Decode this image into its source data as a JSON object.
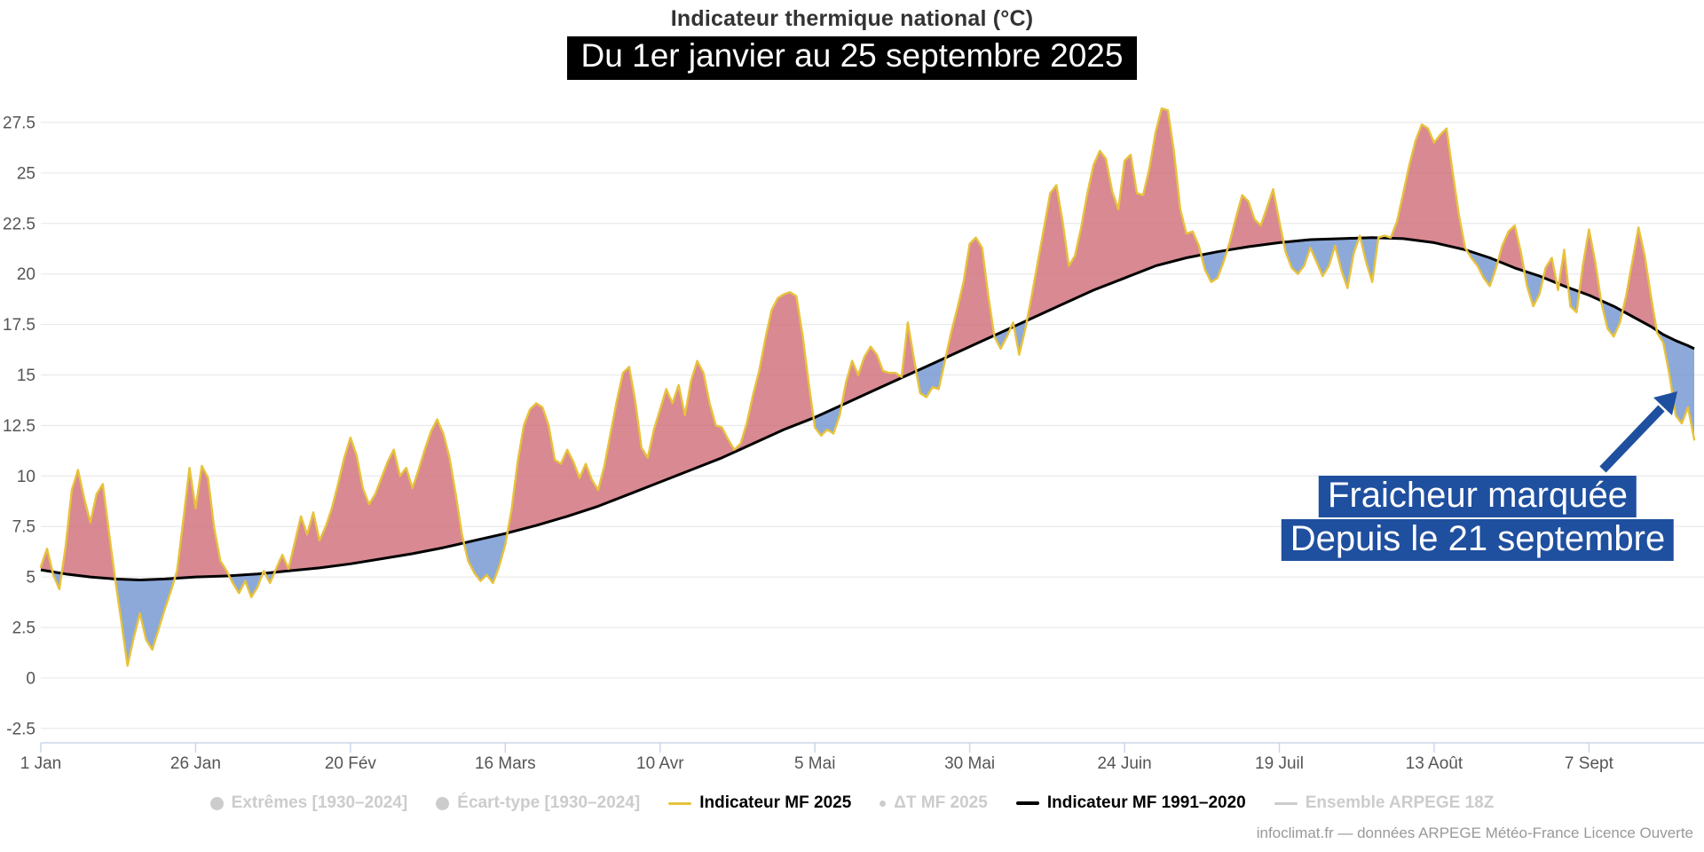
{
  "title": "Indicateur thermique national (°C)",
  "subtitle": "Du 1er janvier au 25 septembre 2025",
  "annotation": {
    "line1": "Fraicheur marquée",
    "line2": "Depuis le 21 septembre"
  },
  "footer": "infoclimat.fr — données ARPEGE Météo-France Licence Ouverte",
  "legend": [
    {
      "label": "Extrêmes [1930–2024]",
      "swatch": "circle",
      "color": "#cccccc",
      "active": false
    },
    {
      "label": "Écart-type [1930–2024]",
      "swatch": "circle",
      "color": "#cccccc",
      "active": false
    },
    {
      "label": "Indicateur MF 2025",
      "swatch": "line",
      "color": "#e7c23c",
      "active": true
    },
    {
      "label": "ΔT MF 2025",
      "swatch": "dot",
      "color": "#cccccc",
      "active": false
    },
    {
      "label": "Indicateur MF 1991–2020",
      "swatch": "line-thick",
      "color": "#000000",
      "active": true
    },
    {
      "label": "Ensemble ARPEGE 18Z",
      "swatch": "line",
      "color": "#cccccc",
      "active": false
    }
  ],
  "colors": {
    "line_2025": "#e7c23c",
    "line_normal": "#000000",
    "fill_above": "#cf6b76",
    "fill_below": "#6f94cf",
    "grid": "#e6e6e6",
    "axis": "#ccd6eb",
    "tick_label": "#555555",
    "annotation_blue": "#1f4f9f",
    "title_color": "#333333",
    "subtitle_bg": "#000000"
  },
  "chart_data": {
    "type": "area",
    "unit": "°C",
    "grid": true,
    "legend_position": "bottom",
    "ylim": [
      -3.2,
      29.1
    ],
    "y_ticks": [
      {
        "value": -2.5,
        "label": "-2.5"
      },
      {
        "value": 0,
        "label": "0"
      },
      {
        "value": 2.5,
        "label": "2.5"
      },
      {
        "value": 5,
        "label": "5"
      },
      {
        "value": 7.5,
        "label": "7.5"
      },
      {
        "value": 10,
        "label": "10"
      },
      {
        "value": 12.5,
        "label": "12.5"
      },
      {
        "value": 15,
        "label": "15"
      },
      {
        "value": 17.5,
        "label": "17.5"
      },
      {
        "value": 20,
        "label": "20"
      },
      {
        "value": 22.5,
        "label": "22.5"
      },
      {
        "value": 25,
        "label": "25"
      },
      {
        "value": 27.5,
        "label": "27.5"
      }
    ],
    "x_ticks": [
      {
        "day": 0,
        "label": "1 Jan"
      },
      {
        "day": 25,
        "label": "26 Jan"
      },
      {
        "day": 50,
        "label": "20 Fév"
      },
      {
        "day": 75,
        "label": "16 Mars"
      },
      {
        "day": 100,
        "label": "10 Avr"
      },
      {
        "day": 125,
        "label": "5 Mai"
      },
      {
        "day": 150,
        "label": "30 Mai"
      },
      {
        "day": 175,
        "label": "24 Juin"
      },
      {
        "day": 200,
        "label": "19 Juil"
      },
      {
        "day": 225,
        "label": "13 Août"
      },
      {
        "day": 250,
        "label": "7 Sept"
      }
    ],
    "series": [
      {
        "name": "Indicateur MF 2025",
        "color": "#e7c23c",
        "values": [
          5.5,
          6.4,
          5.1,
          4.4,
          6.5,
          9.3,
          10.3,
          8.9,
          7.7,
          9.1,
          9.6,
          7.2,
          4.9,
          2.8,
          0.6,
          2.0,
          3.2,
          1.9,
          1.4,
          2.4,
          3.4,
          4.3,
          5.3,
          7.8,
          10.4,
          8.4,
          10.5,
          9.9,
          7.4,
          5.8,
          5.3,
          4.7,
          4.2,
          4.8,
          4.0,
          4.5,
          5.3,
          4.7,
          5.4,
          6.1,
          5.4,
          6.7,
          8.0,
          7.1,
          8.2,
          6.8,
          7.5,
          8.4,
          9.6,
          10.9,
          11.9,
          11.0,
          9.4,
          8.6,
          9.1,
          9.9,
          10.7,
          11.3,
          10.0,
          10.4,
          9.4,
          10.3,
          11.3,
          12.2,
          12.8,
          12.1,
          10.9,
          9.1,
          7.1,
          5.8,
          5.2,
          4.8,
          5.1,
          4.7,
          5.5,
          6.6,
          8.3,
          10.7,
          12.5,
          13.3,
          13.6,
          13.4,
          12.5,
          10.8,
          10.6,
          11.3,
          10.7,
          9.9,
          10.6,
          9.8,
          9.3,
          10.5,
          12.1,
          13.7,
          15.1,
          15.4,
          13.7,
          11.4,
          10.9,
          12.3,
          13.3,
          14.3,
          13.6,
          14.5,
          13.0,
          14.7,
          15.7,
          15.1,
          13.6,
          12.5,
          12.4,
          11.8,
          11.3,
          11.6,
          12.6,
          14.0,
          15.2,
          16.8,
          18.2,
          18.8,
          19.0,
          19.1,
          18.9,
          17.0,
          14.6,
          12.4,
          12.0,
          12.3,
          12.1,
          13.0,
          14.6,
          15.7,
          15.0,
          15.9,
          16.4,
          16.0,
          15.2,
          15.1,
          15.1,
          14.9,
          17.6,
          15.8,
          14.1,
          13.9,
          14.4,
          14.3,
          15.7,
          17.1,
          18.3,
          19.6,
          21.5,
          21.8,
          21.3,
          18.9,
          16.9,
          16.3,
          16.9,
          17.6,
          16.0,
          17.3,
          18.9,
          20.6,
          22.3,
          24.0,
          24.4,
          22.6,
          20.4,
          20.9,
          22.3,
          24.0,
          25.4,
          26.1,
          25.7,
          24.1,
          23.2,
          25.6,
          25.9,
          24.0,
          23.9,
          25.2,
          27.0,
          28.2,
          28.1,
          26.0,
          23.2,
          22.0,
          22.1,
          21.4,
          20.2,
          19.6,
          19.8,
          20.6,
          21.6,
          22.8,
          23.9,
          23.6,
          22.7,
          22.4,
          23.3,
          24.2,
          22.6,
          21.1,
          20.3,
          20.0,
          20.4,
          21.3,
          20.6,
          19.9,
          20.4,
          21.4,
          20.2,
          19.3,
          21.0,
          21.9,
          20.6,
          19.6,
          21.8,
          21.9,
          21.8,
          22.6,
          24.0,
          25.4,
          26.6,
          27.4,
          27.2,
          26.5,
          26.9,
          27.2,
          25.0,
          22.9,
          21.3,
          20.8,
          20.4,
          19.8,
          19.4,
          20.3,
          21.4,
          22.1,
          22.4,
          21.1,
          19.4,
          18.4,
          19.0,
          20.3,
          20.8,
          19.2,
          21.2,
          18.4,
          18.1,
          20.4,
          22.2,
          20.6,
          18.6,
          17.3,
          16.9,
          17.6,
          18.9,
          20.6,
          22.3,
          20.9,
          18.9,
          17.1,
          16.6,
          15.0,
          13.0,
          12.6,
          13.4,
          11.8
        ]
      },
      {
        "name": "Indicateur MF 1991–2020",
        "color": "#000000",
        "interpolation": "linear",
        "anchors": [
          [
            0,
            5.35
          ],
          [
            4,
            5.15
          ],
          [
            8,
            5.0
          ],
          [
            12,
            4.9
          ],
          [
            16,
            4.85
          ],
          [
            20,
            4.9
          ],
          [
            25,
            5.0
          ],
          [
            30,
            5.05
          ],
          [
            35,
            5.15
          ],
          [
            40,
            5.3
          ],
          [
            45,
            5.45
          ],
          [
            50,
            5.65
          ],
          [
            55,
            5.9
          ],
          [
            60,
            6.15
          ],
          [
            65,
            6.45
          ],
          [
            70,
            6.8
          ],
          [
            75,
            7.15
          ],
          [
            80,
            7.55
          ],
          [
            85,
            8.0
          ],
          [
            90,
            8.5
          ],
          [
            95,
            9.1
          ],
          [
            100,
            9.7
          ],
          [
            105,
            10.3
          ],
          [
            110,
            10.9
          ],
          [
            115,
            11.6
          ],
          [
            120,
            12.3
          ],
          [
            125,
            12.9
          ],
          [
            130,
            13.6
          ],
          [
            135,
            14.3
          ],
          [
            140,
            15.0
          ],
          [
            145,
            15.7
          ],
          [
            150,
            16.4
          ],
          [
            155,
            17.1
          ],
          [
            160,
            17.8
          ],
          [
            165,
            18.5
          ],
          [
            170,
            19.2
          ],
          [
            175,
            19.8
          ],
          [
            180,
            20.4
          ],
          [
            185,
            20.8
          ],
          [
            190,
            21.1
          ],
          [
            195,
            21.35
          ],
          [
            200,
            21.55
          ],
          [
            205,
            21.7
          ],
          [
            210,
            21.75
          ],
          [
            215,
            21.8
          ],
          [
            220,
            21.75
          ],
          [
            225,
            21.55
          ],
          [
            230,
            21.2
          ],
          [
            234,
            20.8
          ],
          [
            238,
            20.3
          ],
          [
            242,
            19.9
          ],
          [
            246,
            19.4
          ],
          [
            250,
            18.95
          ],
          [
            254,
            18.4
          ],
          [
            257,
            17.9
          ],
          [
            260,
            17.4
          ],
          [
            262,
            17.0
          ],
          [
            264,
            16.7
          ],
          [
            266,
            16.45
          ],
          [
            267,
            16.3
          ]
        ]
      }
    ]
  }
}
